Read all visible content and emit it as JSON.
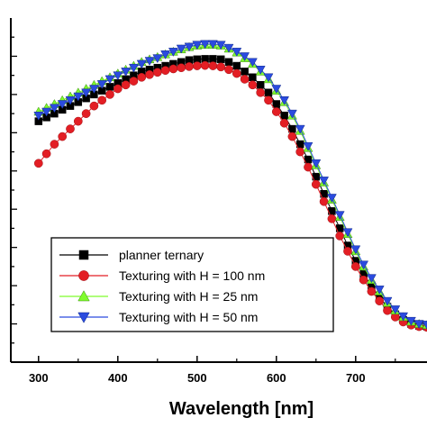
{
  "chart_data": {
    "type": "line",
    "title": "",
    "xlabel": "Wavelength [nm]",
    "ylabel": "",
    "xlim": [
      265,
      790
    ],
    "ylim": [
      0,
      9
    ],
    "x_ticks": [
      300,
      400,
      500,
      600,
      700
    ],
    "y_minor_step": 0.5,
    "grid": false,
    "legend_position": "bottom-left",
    "x": [
      300,
      310,
      320,
      330,
      340,
      350,
      360,
      370,
      380,
      390,
      400,
      410,
      420,
      430,
      440,
      450,
      460,
      470,
      480,
      490,
      500,
      510,
      520,
      530,
      540,
      550,
      560,
      570,
      580,
      590,
      600,
      610,
      620,
      630,
      640,
      650,
      660,
      670,
      680,
      690,
      700,
      710,
      720,
      730,
      740,
      750,
      760,
      770,
      780,
      790
    ],
    "series": [
      {
        "name": "planner ternary",
        "color": "#000000",
        "marker": "square",
        "values": [
          6.3,
          6.4,
          6.5,
          6.6,
          6.7,
          6.8,
          6.9,
          7.0,
          7.1,
          7.2,
          7.3,
          7.4,
          7.5,
          7.6,
          7.65,
          7.7,
          7.75,
          7.8,
          7.85,
          7.9,
          7.92,
          7.93,
          7.93,
          7.92,
          7.85,
          7.75,
          7.6,
          7.45,
          7.25,
          7.05,
          6.75,
          6.45,
          6.1,
          5.7,
          5.3,
          4.85,
          4.4,
          3.95,
          3.5,
          3.05,
          2.65,
          2.3,
          2.0,
          1.7,
          1.45,
          1.25,
          1.1,
          1.0,
          0.95,
          0.93
        ]
      },
      {
        "name": "Texturing with H = 100 nm",
        "color": "#e31e24",
        "marker": "circle",
        "values": [
          5.2,
          5.45,
          5.7,
          5.9,
          6.1,
          6.3,
          6.5,
          6.7,
          6.85,
          7.0,
          7.15,
          7.25,
          7.35,
          7.45,
          7.52,
          7.58,
          7.63,
          7.67,
          7.7,
          7.73,
          7.75,
          7.76,
          7.75,
          7.72,
          7.65,
          7.55,
          7.4,
          7.25,
          7.05,
          6.85,
          6.55,
          6.25,
          5.9,
          5.5,
          5.1,
          4.65,
          4.2,
          3.75,
          3.3,
          2.9,
          2.5,
          2.15,
          1.85,
          1.6,
          1.35,
          1.18,
          1.05,
          0.97,
          0.93,
          0.91
        ]
      },
      {
        "name": "Texturing with H = 25 nm",
        "color": "#7ffc2c",
        "marker": "triangle-up",
        "values": [
          6.55,
          6.65,
          6.75,
          6.85,
          6.95,
          7.05,
          7.15,
          7.25,
          7.35,
          7.45,
          7.55,
          7.65,
          7.75,
          7.85,
          7.92,
          7.98,
          8.05,
          8.12,
          8.18,
          8.24,
          8.28,
          8.3,
          8.3,
          8.28,
          8.2,
          8.1,
          7.95,
          7.8,
          7.6,
          7.4,
          7.1,
          6.8,
          6.45,
          6.05,
          5.6,
          5.15,
          4.7,
          4.25,
          3.8,
          3.35,
          2.9,
          2.5,
          2.15,
          1.85,
          1.55,
          1.35,
          1.18,
          1.06,
          1.0,
          0.97
        ]
      },
      {
        "name": "Texturing with H = 50 nm",
        "color": "#2b4bdf",
        "marker": "triangle-down",
        "values": [
          6.45,
          6.55,
          6.65,
          6.75,
          6.85,
          6.95,
          7.05,
          7.15,
          7.27,
          7.4,
          7.5,
          7.6,
          7.7,
          7.8,
          7.88,
          7.95,
          8.05,
          8.12,
          8.2,
          8.25,
          8.3,
          8.32,
          8.32,
          8.3,
          8.22,
          8.12,
          8.0,
          7.85,
          7.65,
          7.45,
          7.15,
          6.85,
          6.5,
          6.1,
          5.65,
          5.2,
          4.75,
          4.3,
          3.85,
          3.4,
          2.95,
          2.55,
          2.2,
          1.9,
          1.6,
          1.38,
          1.2,
          1.08,
          1.0,
          0.98
        ]
      }
    ]
  }
}
